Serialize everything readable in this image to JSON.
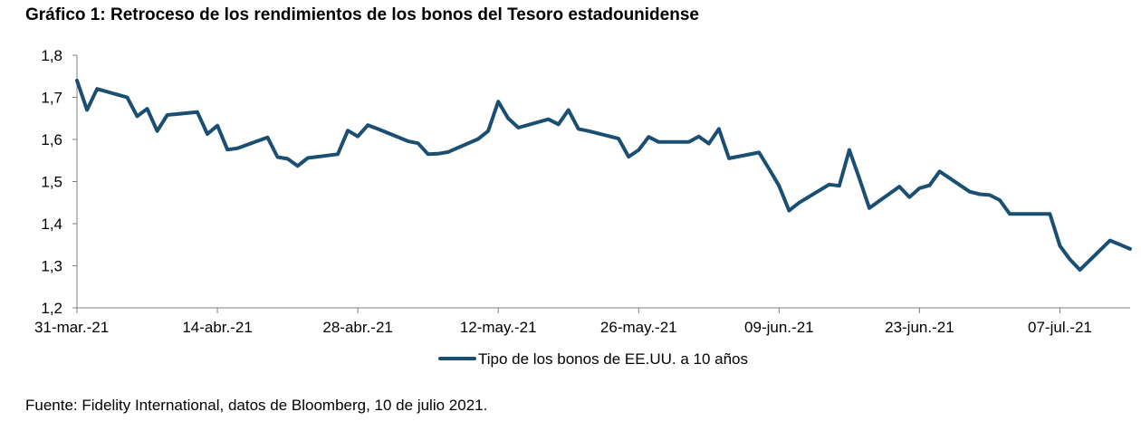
{
  "title": "Gráfico 1: Retroceso de los rendimientos de los bonos del Tesoro estadounidense",
  "source": "Fuente: Fidelity International, datos de Bloomberg, 10 de julio 2021.",
  "colors": {
    "line": "#1b4f72",
    "axis": "#7f7f7f"
  },
  "chart_data": {
    "type": "line",
    "title": "Gráfico 1: Retroceso de los rendimientos de los bonos del Tesoro estadounidense",
    "xlabel": "",
    "ylabel": "",
    "ylim": [
      1.2,
      1.8
    ],
    "yticks": [
      "1,2",
      "1,3",
      "1,4",
      "1,5",
      "1,6",
      "1,7",
      "1,8"
    ],
    "yticks_values": [
      1.2,
      1.3,
      1.4,
      1.5,
      1.6,
      1.7,
      1.8
    ],
    "xlim_days": [
      0,
      105
    ],
    "xticks": [
      "31-mar.-21",
      "14-abr.-21",
      "28-abr.-21",
      "12-may.-21",
      "26-may.-21",
      "09-jun.-21",
      "23-jun.-21",
      "07-jul.-21"
    ],
    "xticks_days": [
      0,
      14,
      28,
      42,
      56,
      70,
      84,
      98
    ],
    "grid": false,
    "legend_position": "bottom",
    "series": [
      {
        "name": "Tipo de los bonos de EE.UU. a 10 años",
        "x_days": [
          0,
          1,
          2,
          5,
          6,
          7,
          8,
          9,
          12,
          13,
          14,
          15,
          16,
          19,
          20,
          21,
          22,
          23,
          26,
          27,
          28,
          29,
          30,
          33,
          34,
          35,
          36,
          37,
          40,
          41,
          42,
          43,
          44,
          47,
          48,
          49,
          50,
          51,
          54,
          55,
          56,
          57,
          58,
          61,
          62,
          63,
          64,
          65,
          68,
          69,
          70,
          71,
          72,
          75,
          76,
          77,
          78,
          79,
          82,
          83,
          84,
          85,
          86,
          89,
          90,
          91,
          92,
          93,
          96,
          97,
          98,
          99,
          100,
          103,
          104,
          105
        ],
        "values": [
          1.74,
          1.67,
          1.72,
          1.7,
          1.655,
          1.673,
          1.62,
          1.658,
          1.665,
          1.613,
          1.633,
          1.576,
          1.579,
          1.605,
          1.558,
          1.554,
          1.537,
          1.556,
          1.565,
          1.621,
          1.607,
          1.634,
          1.625,
          1.596,
          1.591,
          1.565,
          1.566,
          1.57,
          1.601,
          1.62,
          1.69,
          1.65,
          1.628,
          1.648,
          1.636,
          1.67,
          1.625,
          1.62,
          1.602,
          1.559,
          1.575,
          1.606,
          1.594,
          1.594,
          1.607,
          1.59,
          1.625,
          1.555,
          1.569,
          1.53,
          1.49,
          1.431,
          1.45,
          1.493,
          1.49,
          1.575,
          1.508,
          1.437,
          1.488,
          1.463,
          1.484,
          1.491,
          1.524,
          1.476,
          1.47,
          1.468,
          1.456,
          1.423,
          1.423,
          1.423,
          1.347,
          1.315,
          1.29,
          1.36,
          1.35,
          1.34
        ]
      }
    ]
  }
}
